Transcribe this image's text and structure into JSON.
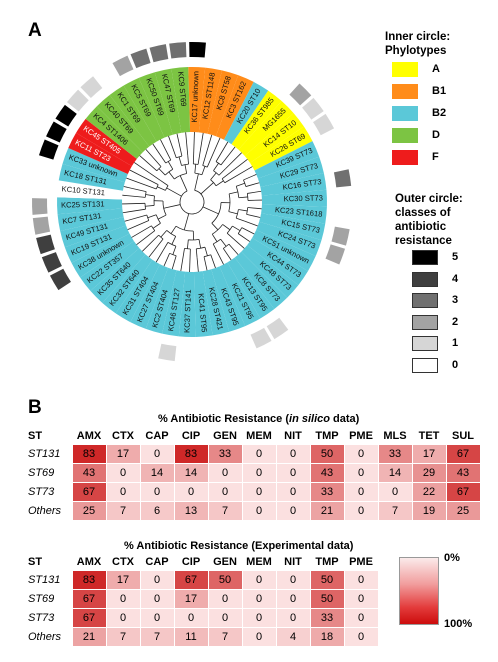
{
  "panel_a_label": "A",
  "panel_b_label": "B",
  "tree": {
    "leaves": [
      {
        "label": "KC17 unknown",
        "phylo": "B1",
        "outer": "5"
      },
      {
        "label": "KC12 ST1148",
        "phylo": "B1",
        "outer": "0"
      },
      {
        "label": "KC8 ST58",
        "phylo": "B1",
        "outer": "0"
      },
      {
        "label": "KC3 ST162",
        "phylo": "B1",
        "outer": "0"
      },
      {
        "label": "KC20 ST10",
        "phylo": "B2",
        "outer": "0"
      },
      {
        "label": "KC36 ST985",
        "phylo": "A",
        "outer": "0"
      },
      {
        "label": "MG1655",
        "phylo": "A",
        "outer": "2"
      },
      {
        "label": "KC14 ST10",
        "phylo": "A",
        "outer": "1"
      },
      {
        "label": "KC26 ST69",
        "phylo": "A",
        "outer": "1"
      },
      {
        "label": "KC39 ST73",
        "phylo": "B2",
        "outer": "0"
      },
      {
        "label": "KC29 ST73",
        "phylo": "B2",
        "outer": "0"
      },
      {
        "label": "KC16 ST73",
        "phylo": "B2",
        "outer": "3"
      },
      {
        "label": "KC30 ST73",
        "phylo": "B2",
        "outer": "0"
      },
      {
        "label": "KC23 ST1618",
        "phylo": "B2",
        "outer": "0"
      },
      {
        "label": "KC15 ST73",
        "phylo": "B2",
        "outer": "2"
      },
      {
        "label": "KC24 ST73",
        "phylo": "B2",
        "outer": "2"
      },
      {
        "label": "KC51 unknown",
        "phylo": "B2",
        "outer": "0"
      },
      {
        "label": "KC44 ST73",
        "phylo": "B2",
        "outer": "0"
      },
      {
        "label": "KC48 ST73",
        "phylo": "B2",
        "outer": "0"
      },
      {
        "label": "KC8 ST73",
        "phylo": "B2",
        "outer": "0"
      },
      {
        "label": "KC13 ST95",
        "phylo": "B2",
        "outer": "1"
      },
      {
        "label": "KC21 ST95",
        "phylo": "B2",
        "outer": "1"
      },
      {
        "label": "KC43 ST95",
        "phylo": "B2",
        "outer": "0"
      },
      {
        "label": "KC28 ST421",
        "phylo": "B2",
        "outer": "0"
      },
      {
        "label": "KC41 ST95",
        "phylo": "B2",
        "outer": "0"
      },
      {
        "label": "KC37 ST141",
        "phylo": "B2",
        "outer": "0"
      },
      {
        "label": "KC46 ST127",
        "phylo": "B2",
        "outer": "1"
      },
      {
        "label": "KC2 ST404",
        "phylo": "B2",
        "outer": "0"
      },
      {
        "label": "KC27 ST404",
        "phylo": "B2",
        "outer": "0"
      },
      {
        "label": "KC31 ST404",
        "phylo": "B2",
        "outer": "0"
      },
      {
        "label": "KC32 ST640",
        "phylo": "B2",
        "outer": "0"
      },
      {
        "label": "KC35 ST640",
        "phylo": "B2",
        "outer": "0"
      },
      {
        "label": "KC22 ST357",
        "phylo": "B2",
        "outer": "0"
      },
      {
        "label": "KC38 unknown",
        "phylo": "B2",
        "outer": "4"
      },
      {
        "label": "KC19 ST131",
        "phylo": "B2",
        "outer": "4"
      },
      {
        "label": "KC49 ST131",
        "phylo": "B2",
        "outer": "4"
      },
      {
        "label": "KC7 ST131",
        "phylo": "B2",
        "outer": "2"
      },
      {
        "label": "KC25 ST131",
        "phylo": "B2",
        "outer": "2"
      },
      {
        "label": "KC10 ST131",
        "phylo": "none",
        "outer": "0"
      },
      {
        "label": "KC18 ST131",
        "phylo": "B2",
        "outer": "0"
      },
      {
        "label": "KC33 unknown",
        "phylo": "B2",
        "outer": "5"
      },
      {
        "label": "KC11 ST23",
        "phylo": "F",
        "outer": "5"
      },
      {
        "label": "KC45 ST405",
        "phylo": "F",
        "outer": "5"
      },
      {
        "label": "KC4 ST1406",
        "phylo": "D",
        "outer": "1"
      },
      {
        "label": "KC40 ST69",
        "phylo": "D",
        "outer": "1"
      },
      {
        "label": "KC1 ST69",
        "phylo": "D",
        "outer": "0"
      },
      {
        "label": "KC5 ST69",
        "phylo": "D",
        "outer": "2"
      },
      {
        "label": "KC50 ST69",
        "phylo": "D",
        "outer": "3"
      },
      {
        "label": "KC47 ST69",
        "phylo": "D",
        "outer": "3"
      },
      {
        "label": "KC9 ST69",
        "phylo": "D",
        "outer": "3"
      }
    ]
  },
  "legend": {
    "inner_title_1": "Inner circle:",
    "inner_title_2": "Phylotypes",
    "phylotypes": [
      {
        "name": "A",
        "color": "#ffff00"
      },
      {
        "name": "B1",
        "color": "#ff8c1a"
      },
      {
        "name": "B2",
        "color": "#5bc8d8"
      },
      {
        "name": "D",
        "color": "#7cc443"
      },
      {
        "name": "F",
        "color": "#ee1c1c"
      }
    ],
    "outer_title_1": "Outer circle:",
    "outer_title_2": "classes of",
    "outer_title_3": "antibiotic",
    "outer_title_4": "resistance",
    "classes": [
      {
        "name": "5",
        "color": "#000000"
      },
      {
        "name": "4",
        "color": "#3f3f3f"
      },
      {
        "name": "3",
        "color": "#707070"
      },
      {
        "name": "2",
        "color": "#a3a3a3"
      },
      {
        "name": "1",
        "color": "#d6d6d6"
      },
      {
        "name": "0",
        "color": "#ffffff"
      }
    ]
  },
  "heatmap_silico": {
    "title_prefix": "% Antibiotic Resistance (",
    "title_italic": "in silico",
    "title_suffix": " data)",
    "st_header": "ST",
    "columns": [
      "AMX",
      "CTX",
      "CAP",
      "CIP",
      "GEN",
      "MEM",
      "NIT",
      "TMP",
      "PME",
      "MLS",
      "TET",
      "SUL"
    ],
    "rows": [
      {
        "st": "ST131",
        "values": [
          83,
          17,
          0,
          83,
          33,
          0,
          0,
          50,
          0,
          33,
          17,
          67
        ]
      },
      {
        "st": "ST69",
        "values": [
          43,
          0,
          14,
          14,
          0,
          0,
          0,
          43,
          0,
          14,
          29,
          43
        ]
      },
      {
        "st": "ST73",
        "values": [
          67,
          0,
          0,
          0,
          0,
          0,
          0,
          33,
          0,
          0,
          22,
          67
        ]
      },
      {
        "st": "Others",
        "values": [
          25,
          7,
          6,
          13,
          7,
          0,
          0,
          21,
          0,
          7,
          19,
          25
        ]
      }
    ]
  },
  "heatmap_exp": {
    "title": "% Antibiotic Resistance (Experimental data)",
    "st_header": "ST",
    "columns": [
      "AMX",
      "CTX",
      "CAP",
      "CIP",
      "GEN",
      "MEM",
      "NIT",
      "TMP",
      "PME"
    ],
    "rows": [
      {
        "st": "ST131",
        "values": [
          83,
          17,
          0,
          67,
          50,
          0,
          0,
          50,
          0
        ]
      },
      {
        "st": "ST69",
        "values": [
          67,
          0,
          0,
          17,
          0,
          0,
          0,
          50,
          0
        ]
      },
      {
        "st": "ST73",
        "values": [
          67,
          0,
          0,
          0,
          0,
          0,
          0,
          33,
          0
        ]
      },
      {
        "st": "Others",
        "values": [
          21,
          7,
          7,
          11,
          7,
          0,
          4,
          18,
          0
        ]
      }
    ]
  },
  "scale": {
    "low_label": "0%",
    "high_label": "100%"
  }
}
